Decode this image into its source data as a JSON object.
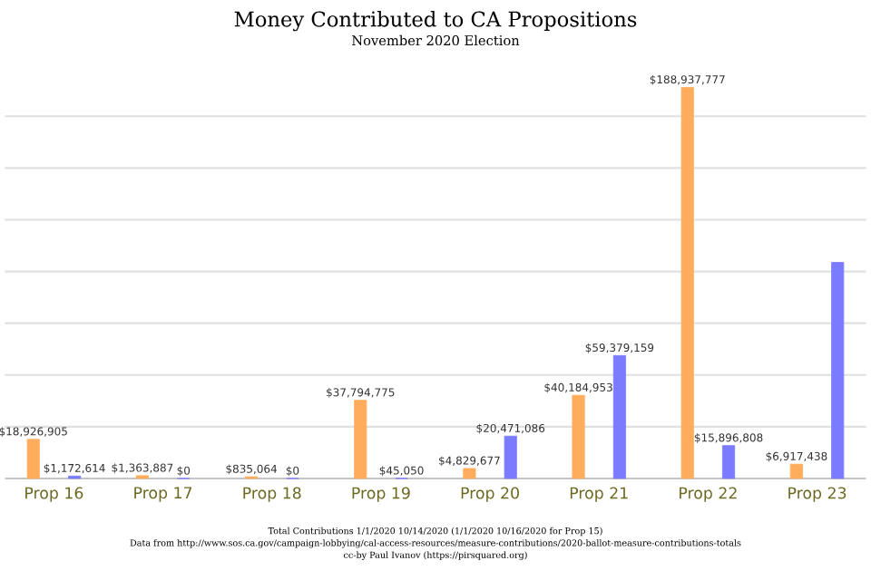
{
  "chart_data": {
    "type": "bar",
    "title": "Money Contributed to CA Propositions",
    "subtitle": "November 2020 Election",
    "categories": [
      "Prop 16",
      "Prop 17",
      "Prop 18",
      "Prop 19",
      "Prop 20",
      "Prop 21",
      "Prop 22",
      "Prop 23"
    ],
    "series": [
      {
        "color": "#ffad5c",
        "values": [
          18926905,
          1363887,
          835064,
          37794775,
          4829677,
          40184953,
          188937777,
          6917438
        ],
        "value_labels": [
          "$18,926,905",
          "$1,363,887",
          "$835,064",
          "$37,794,775",
          "$4,829,677",
          "$40,184,953",
          "$188,937,777",
          "$6,917,438"
        ]
      },
      {
        "color": "#7b7bff",
        "values": [
          1172614,
          0,
          0,
          45050,
          20471086,
          59379159,
          15896808,
          104400000
        ],
        "value_labels": [
          "$1,172,614",
          "$0",
          "$0",
          "$45,050",
          "$20,471,086",
          "$59,379,159",
          "$15,896,808",
          null
        ]
      }
    ],
    "yticks": [
      {
        "value": 25000000,
        "label": null
      },
      {
        "value": 50000000,
        "label": null
      },
      {
        "value": 75000000,
        "label": null
      },
      {
        "value": 100000000,
        "label": null
      },
      {
        "value": 125000000,
        "label": null
      },
      {
        "value": 150000000,
        "label": null
      },
      {
        "value": 175000000,
        "label": null
      }
    ],
    "grid": "y",
    "tick_labels": "x",
    "annotations": [
      "Total Contributions 1/1/2020 10/14/2020  (1/1/2020 10/16/2020 for Prop 15)",
      "Data from http://www.sos.ca.gov/campaign-lobbying/cal-access-resources/measure-contributions/2020-ballot-measure-contributions-totals",
      "cc-by Paul Ivanov (https://pirsquared.org)"
    ]
  }
}
